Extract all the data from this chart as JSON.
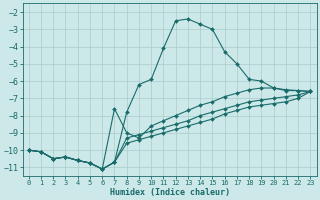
{
  "bg_color": "#cce8e8",
  "grid_color": "#aacccc",
  "line_color": "#1a6b6b",
  "xlim": [
    -0.5,
    23.5
  ],
  "ylim": [
    -11.5,
    -1.5
  ],
  "yticks": [
    -11,
    -10,
    -9,
    -8,
    -7,
    -6,
    -5,
    -4,
    -3,
    -2
  ],
  "xticks": [
    0,
    1,
    2,
    3,
    4,
    5,
    6,
    7,
    8,
    9,
    10,
    11,
    12,
    13,
    14,
    15,
    16,
    17,
    18,
    19,
    20,
    21,
    22,
    23
  ],
  "xlabel": "Humidex (Indice chaleur)",
  "series": [
    {
      "x": [
        0,
        1,
        2,
        3,
        4,
        5,
        6,
        7,
        8,
        9,
        10,
        11,
        12,
        13,
        14,
        15,
        16,
        17,
        18,
        19,
        20,
        21,
        22,
        23
      ],
      "y": [
        -10.0,
        -10.1,
        -10.5,
        -10.4,
        -10.6,
        -10.75,
        -11.1,
        -10.7,
        -7.8,
        -6.2,
        -5.9,
        -4.1,
        -2.5,
        -2.4,
        -2.7,
        -3.0,
        -4.3,
        -5.0,
        -5.9,
        -6.0,
        -6.4,
        -6.55,
        -6.55,
        -6.6
      ]
    },
    {
      "x": [
        0,
        1,
        2,
        3,
        4,
        5,
        6,
        7,
        8,
        9,
        10,
        11,
        12,
        13,
        14,
        15,
        16,
        17,
        18,
        19,
        20,
        21,
        22,
        23
      ],
      "y": [
        -10.0,
        -10.1,
        -10.5,
        -10.4,
        -10.6,
        -10.75,
        -11.1,
        -7.6,
        -9.0,
        -9.3,
        -8.6,
        -8.3,
        -8.0,
        -7.7,
        -7.4,
        -7.2,
        -6.9,
        -6.7,
        -6.5,
        -6.4,
        -6.4,
        -6.5,
        -6.55,
        -6.6
      ]
    },
    {
      "x": [
        0,
        1,
        2,
        3,
        4,
        5,
        6,
        7,
        8,
        9,
        10,
        11,
        12,
        13,
        14,
        15,
        16,
        17,
        18,
        19,
        20,
        21,
        22,
        23
      ],
      "y": [
        -10.0,
        -10.1,
        -10.5,
        -10.4,
        -10.6,
        -10.75,
        -11.1,
        -10.7,
        -9.3,
        -9.1,
        -8.9,
        -8.7,
        -8.5,
        -8.3,
        -8.0,
        -7.8,
        -7.6,
        -7.4,
        -7.2,
        -7.1,
        -7.0,
        -6.9,
        -6.8,
        -6.6
      ]
    },
    {
      "x": [
        0,
        1,
        2,
        3,
        4,
        5,
        6,
        7,
        8,
        9,
        10,
        11,
        12,
        13,
        14,
        15,
        16,
        17,
        18,
        19,
        20,
        21,
        22,
        23
      ],
      "y": [
        -10.0,
        -10.1,
        -10.5,
        -10.4,
        -10.6,
        -10.75,
        -11.1,
        -10.7,
        -9.6,
        -9.4,
        -9.2,
        -9.0,
        -8.8,
        -8.6,
        -8.4,
        -8.2,
        -7.9,
        -7.7,
        -7.5,
        -7.4,
        -7.3,
        -7.2,
        -7.0,
        -6.6
      ]
    }
  ]
}
